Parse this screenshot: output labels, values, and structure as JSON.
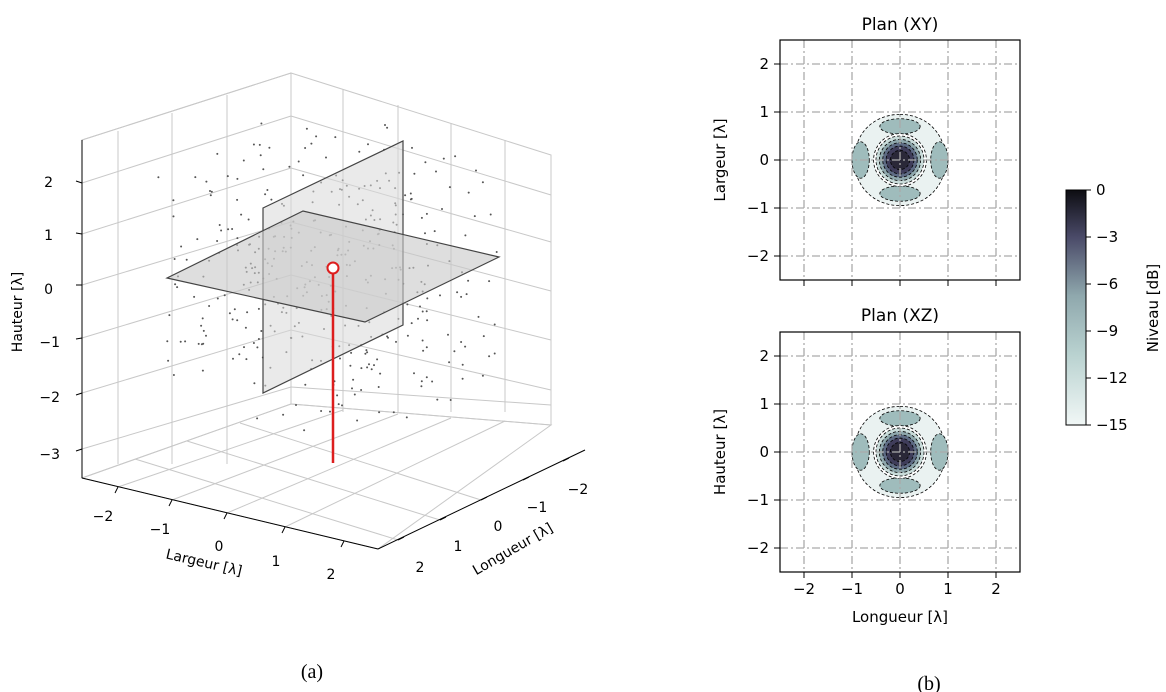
{
  "colors": {
    "grid": "#aaaaaa",
    "pane_grid": "#c8c8c8",
    "stem": "#dd1e1e",
    "point": "#555555",
    "plane_fill": "#cfcfcf",
    "plane_edge": "#444444",
    "cmap_dark": "#111111",
    "cmap_mid": "#3f3d5a",
    "cmap_teal": "#9fbcbc",
    "cmap_light": "#f1f7f6"
  },
  "panel_a": {
    "caption": "(a)",
    "zlabel": "Hauteur [λ]",
    "xlabel": "Largeur [λ]",
    "ylabel": "Longueur [λ]",
    "zticks": [
      "2",
      "1",
      "0",
      "−1",
      "−2",
      "−3"
    ],
    "xticks": [
      "−2",
      "−1",
      "0",
      "1",
      "2"
    ],
    "yticks": [
      "−2",
      "−1",
      "0",
      "1",
      "2"
    ]
  },
  "panel_b": {
    "caption": "(b)",
    "colorbar_label": "Niveau [dB]",
    "colorbar_ticks": [
      "0",
      "−3",
      "−6",
      "−9",
      "−12",
      "−15"
    ]
  },
  "chart_data": [
    {
      "type": "scatter",
      "title": "",
      "xlabel": "Largeur [λ]",
      "ylabel": "Longueur [λ]",
      "zlabel": "Hauteur [λ]",
      "xlim": [
        -2.5,
        2.5
      ],
      "ylim": [
        -2.5,
        2.5
      ],
      "zlim": [
        -3.3,
        2.5
      ],
      "grid": true,
      "series": [
        {
          "description": "red stem with open circle marker",
          "points": [
            {
              "x": 0,
              "y": 0,
              "z": 0.3
            },
            {
              "x": 0,
              "y": 0,
              "z": -3.3
            }
          ]
        }
      ],
      "planes": [
        "z = 0",
        "x = 0"
      ]
    },
    {
      "type": "heatmap",
      "title": "Plan (XY)",
      "xlabel": "",
      "ylabel": "Largeur [λ]",
      "xticks": [
        "−2",
        "−1",
        "0",
        "1",
        "2"
      ],
      "yticks": [
        "2",
        "1",
        "0",
        "−1",
        "−2"
      ],
      "xlim": [
        -2.5,
        2.5
      ],
      "ylim": [
        -2.5,
        2.5
      ],
      "levels_db": [
        0,
        -3,
        -6,
        -9,
        -12,
        -15
      ],
      "grid": true
    },
    {
      "type": "heatmap",
      "title": "Plan (XZ)",
      "xlabel": "Longueur [λ]",
      "ylabel": "Hauteur [λ]",
      "xticks": [
        "−2",
        "−1",
        "0",
        "1",
        "2"
      ],
      "yticks": [
        "2",
        "1",
        "0",
        "−1",
        "−2"
      ],
      "xlim": [
        -2.5,
        2.5
      ],
      "ylim": [
        -2.5,
        2.5
      ],
      "levels_db": [
        0,
        -3,
        -6,
        -9,
        -12,
        -15
      ],
      "grid": true
    }
  ]
}
